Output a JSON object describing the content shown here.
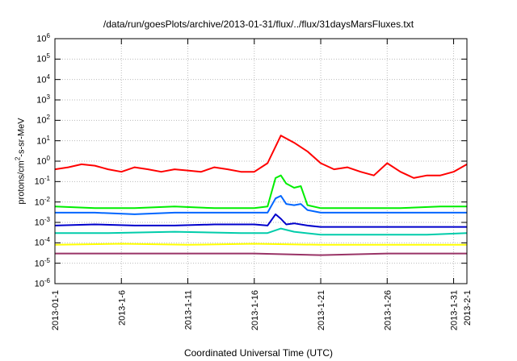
{
  "chart_data": {
    "type": "line",
    "title": "/data/run/goesPlots/archive/2013-01-31/flux/../flux/31daysMarsFluxes.txt",
    "xlabel": "Coordinated Universal Time (UTC)",
    "ylabel_base": "protons/cm",
    "ylabel_sup": "2",
    "ylabel_rest": "-s-sr-MeV",
    "y_scale": "log",
    "ylim": [
      1e-06,
      1000000.0
    ],
    "y_tick_labels": [
      {
        "base": "10",
        "exp": "6"
      },
      {
        "base": "10",
        "exp": "5"
      },
      {
        "base": "10",
        "exp": "4"
      },
      {
        "base": "10",
        "exp": "3"
      },
      {
        "base": "10",
        "exp": "2"
      },
      {
        "base": "10",
        "exp": "1"
      },
      {
        "base": "10",
        "exp": "0"
      },
      {
        "base": "10",
        "exp": "-1"
      },
      {
        "base": "10",
        "exp": "-2"
      },
      {
        "base": "10",
        "exp": "-3"
      },
      {
        "base": "10",
        "exp": "-4"
      },
      {
        "base": "10",
        "exp": "-5"
      },
      {
        "base": "10",
        "exp": "-6"
      }
    ],
    "xlim": [
      "2013-01-01",
      "2013-02-01"
    ],
    "x_tick_labels": [
      "2013-01-1",
      "2013-1-6",
      "2013-1-11",
      "2013-1-16",
      "2013-1-21",
      "2013-1-26",
      "2013-1-31",
      "2013-2-1"
    ],
    "x_tick_dates": [
      "2013-01-01",
      "2013-01-06",
      "2013-01-11",
      "2013-01-16",
      "2013-01-21",
      "2013-01-26",
      "2013-01-31",
      "2013-02-01"
    ],
    "grid": true,
    "series": [
      {
        "color": "#ff0000",
        "x": [
          "2013-01-01",
          "2013-01-02",
          "2013-01-03",
          "2013-01-04",
          "2013-01-05",
          "2013-01-06",
          "2013-01-07",
          "2013-01-08",
          "2013-01-09",
          "2013-01-10",
          "2013-01-11",
          "2013-01-12",
          "2013-01-13",
          "2013-01-14",
          "2013-01-15",
          "2013-01-16",
          "2013-01-17",
          "2013-01-18",
          "2013-01-19",
          "2013-01-20",
          "2013-01-21",
          "2013-01-22",
          "2013-01-23",
          "2013-01-24",
          "2013-01-25",
          "2013-01-26",
          "2013-01-27",
          "2013-01-28",
          "2013-01-29",
          "2013-01-30",
          "2013-01-31",
          "2013-02-01"
        ],
        "y": [
          0.4,
          0.5,
          0.7,
          0.6,
          0.4,
          0.3,
          0.5,
          0.4,
          0.3,
          0.4,
          0.35,
          0.3,
          0.5,
          0.4,
          0.3,
          0.3,
          0.8,
          18,
          8,
          3,
          0.8,
          0.4,
          0.5,
          0.3,
          0.2,
          0.8,
          0.3,
          0.15,
          0.2,
          0.2,
          0.3,
          0.7
        ]
      },
      {
        "color": "#00ee00",
        "x": [
          "2013-01-01",
          "2013-01-04",
          "2013-01-07",
          "2013-01-10",
          "2013-01-13",
          "2013-01-16",
          "2013-01-17",
          "2013-01-17.6",
          "2013-01-18",
          "2013-01-18.4",
          "2013-01-19",
          "2013-01-19.5",
          "2013-01-20",
          "2013-01-21",
          "2013-01-24",
          "2013-01-27",
          "2013-01-30",
          "2013-02-01"
        ],
        "y": [
          0.006,
          0.005,
          0.005,
          0.006,
          0.005,
          0.005,
          0.006,
          0.15,
          0.2,
          0.08,
          0.05,
          0.06,
          0.007,
          0.005,
          0.005,
          0.005,
          0.006,
          0.006
        ]
      },
      {
        "color": "#0066ff",
        "x": [
          "2013-01-01",
          "2013-01-04",
          "2013-01-07",
          "2013-01-10",
          "2013-01-13",
          "2013-01-16",
          "2013-01-17",
          "2013-01-17.6",
          "2013-01-18",
          "2013-01-18.4",
          "2013-01-19",
          "2013-01-19.5",
          "2013-01-20",
          "2013-01-21",
          "2013-01-24",
          "2013-01-27",
          "2013-01-30",
          "2013-02-01"
        ],
        "y": [
          0.003,
          0.003,
          0.0025,
          0.003,
          0.003,
          0.003,
          0.003,
          0.015,
          0.02,
          0.008,
          0.007,
          0.008,
          0.004,
          0.003,
          0.003,
          0.003,
          0.003,
          0.003
        ]
      },
      {
        "color": "#0000cc",
        "x": [
          "2013-01-01",
          "2013-01-04",
          "2013-01-07",
          "2013-01-10",
          "2013-01-13",
          "2013-01-16",
          "2013-01-17",
          "2013-01-17.6",
          "2013-01-18",
          "2013-01-18.4",
          "2013-01-19",
          "2013-01-20",
          "2013-01-21",
          "2013-01-24",
          "2013-01-27",
          "2013-01-30",
          "2013-02-01"
        ],
        "y": [
          0.0007,
          0.0008,
          0.0007,
          0.0007,
          0.0008,
          0.0008,
          0.0007,
          0.0025,
          0.0015,
          0.0008,
          0.0009,
          0.0007,
          0.0006,
          0.0006,
          0.0006,
          0.0006,
          0.0006
        ]
      },
      {
        "color": "#00ccaa",
        "x": [
          "2013-01-01",
          "2013-01-05",
          "2013-01-10",
          "2013-01-15",
          "2013-01-17",
          "2013-01-18",
          "2013-01-19",
          "2013-01-21",
          "2013-01-25",
          "2013-01-29",
          "2013-02-01"
        ],
        "y": [
          0.0003,
          0.0003,
          0.00035,
          0.0003,
          0.0003,
          0.0005,
          0.00035,
          0.00025,
          0.00025,
          0.00025,
          0.0003
        ]
      },
      {
        "color": "#ffff00",
        "x": [
          "2013-01-01",
          "2013-01-06",
          "2013-01-11",
          "2013-01-16",
          "2013-01-21",
          "2013-01-26",
          "2013-01-31",
          "2013-02-01"
        ],
        "y": [
          8e-05,
          9e-05,
          8e-05,
          9e-05,
          8e-05,
          8e-05,
          8e-05,
          8e-05
        ]
      },
      {
        "color": "#993366",
        "x": [
          "2013-01-01",
          "2013-01-06",
          "2013-01-11",
          "2013-01-16",
          "2013-01-21",
          "2013-01-26",
          "2013-01-31",
          "2013-02-01"
        ],
        "y": [
          3e-05,
          3e-05,
          3e-05,
          3e-05,
          2.5e-05,
          3e-05,
          3e-05,
          3e-05
        ]
      }
    ]
  }
}
